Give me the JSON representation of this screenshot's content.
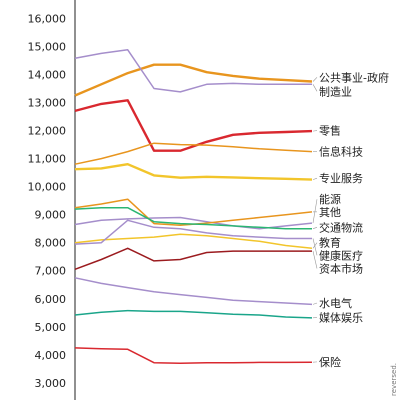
{
  "chart_data": {
    "type": "line",
    "x_count": 10,
    "ylim": [
      3000,
      16500
    ],
    "yticks": [
      3000,
      4000,
      5000,
      6000,
      7000,
      8000,
      9000,
      10000,
      11000,
      12000,
      13000,
      14000,
      15000,
      16000
    ],
    "ytick_labels": [
      "3,000",
      "4,000",
      "5,000",
      "6,000",
      "7,000",
      "8,000",
      "9,000",
      "10,000",
      "11,000",
      "12,000",
      "13,000",
      "14,000",
      "15,000",
      "16,000"
    ],
    "grid": false,
    "series": [
      {
        "name": "公共事业-政府",
        "color": "#e8951e",
        "width": 2.4,
        "values": [
          13250,
          13650,
          14050,
          14350,
          14350,
          14080,
          13950,
          13850,
          13800,
          13750
        ]
      },
      {
        "name": "制造业",
        "color": "#a58ecb",
        "width": 1.5,
        "values": [
          14580,
          14750,
          14880,
          13500,
          13380,
          13650,
          13680,
          13650,
          13650,
          13650
        ]
      },
      {
        "name": "零售",
        "color": "#d9282f",
        "width": 2.4,
        "values": [
          12700,
          12950,
          13080,
          11280,
          11280,
          11600,
          11850,
          11920,
          11950,
          11980
        ]
      },
      {
        "name": "信息科技",
        "color": "#e8951e",
        "width": 1.5,
        "values": [
          10800,
          11000,
          11250,
          11550,
          11500,
          11480,
          11420,
          11350,
          11300,
          11250
        ]
      },
      {
        "name": "专业服务",
        "color": "#f2c52b",
        "width": 2.4,
        "values": [
          10620,
          10650,
          10800,
          10400,
          10320,
          10350,
          10330,
          10300,
          10280,
          10250
        ]
      },
      {
        "name": "能源",
        "color": "#a58ecb",
        "width": 1.5,
        "values": [
          8650,
          8800,
          8850,
          8880,
          8900,
          8750,
          8600,
          8500,
          8600,
          8700
        ]
      },
      {
        "name": "其他",
        "color": "#e8951e",
        "width": 1.5,
        "values": [
          9250,
          9380,
          9550,
          8680,
          8620,
          8700,
          8800,
          8900,
          9000,
          9100
        ]
      },
      {
        "name": "交通物流",
        "color": "#2bb673",
        "width": 1.5,
        "values": [
          9200,
          9250,
          9250,
          8750,
          8680,
          8650,
          8600,
          8550,
          8500,
          8500
        ]
      },
      {
        "name": "教育",
        "color": "#f2c52b",
        "width": 1.5,
        "values": [
          8000,
          8100,
          8150,
          8200,
          8300,
          8250,
          8150,
          8050,
          7900,
          7800
        ]
      },
      {
        "name": "健康医疗",
        "color": "#a58ecb",
        "width": 1.5,
        "values": [
          7950,
          8000,
          8800,
          8550,
          8500,
          8350,
          8250,
          8200,
          8150,
          8150
        ]
      },
      {
        "name": "资本市场",
        "color": "#9b1b1f",
        "width": 1.5,
        "values": [
          7050,
          7400,
          7800,
          7350,
          7400,
          7650,
          7700,
          7700,
          7700,
          7700
        ]
      },
      {
        "name": "水电气",
        "color": "#a58ecb",
        "width": 1.5,
        "values": [
          6750,
          6550,
          6400,
          6250,
          6150,
          6050,
          5950,
          5900,
          5850,
          5800
        ]
      },
      {
        "name": "媒体娱乐",
        "color": "#1aa58a",
        "width": 1.5,
        "values": [
          5420,
          5520,
          5580,
          5550,
          5550,
          5500,
          5450,
          5420,
          5350,
          5320
        ]
      },
      {
        "name": "保险",
        "color": "#d9282f",
        "width": 1.5,
        "values": [
          4250,
          4220,
          4200,
          3720,
          3700,
          3720,
          3720,
          3730,
          3730,
          3740
        ]
      }
    ],
    "label_values": {
      "公共事业-政府": 13900,
      "制造业": 13400,
      "零售": 12000,
      "信息科技": 11250,
      "专业服务": 10300,
      "能源": 9550,
      "其他": 9100,
      "交通物流": 8550,
      "教育": 8000,
      "健康医疗": 7550,
      "资本市场": 7080,
      "水电气": 5850,
      "媒体娱乐": 5330,
      "保险": 3750
    },
    "note": "reversed."
  }
}
